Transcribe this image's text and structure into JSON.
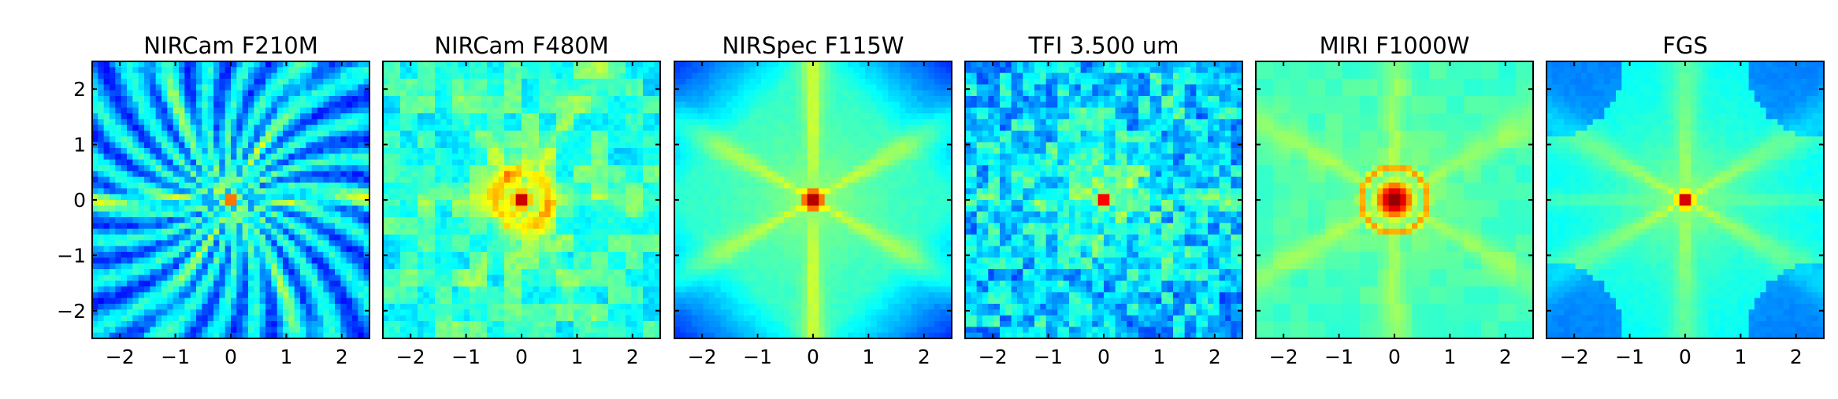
{
  "figure": {
    "panels": [
      "NIRCam F210M",
      "NIRCam F480M",
      "NIRSpec F115W",
      "TFI 3.500 um",
      "MIRI F1000W",
      "FGS"
    ]
  },
  "chart_data": [
    {
      "type": "heatmap",
      "title": "NIRCam F210M",
      "xlabel": "",
      "ylabel": "",
      "xlim": [
        -2.5,
        2.5
      ],
      "ylim": [
        -2.5,
        2.5
      ],
      "xticks": [
        -2,
        -1,
        0,
        1,
        2
      ],
      "xtick_labels": [
        "−2",
        "−1",
        "0",
        "1",
        "2"
      ],
      "yticks": [
        -2,
        -1,
        0,
        1,
        2
      ],
      "ytick_labels": [
        "−2",
        "−1",
        "0",
        "1",
        "2"
      ],
      "colormap": "jet",
      "grid": false,
      "description_values": {
        "peak_x": 0,
        "peak_y": 0,
        "core_radius": 0.12,
        "background_level": 0.25
      }
    },
    {
      "type": "heatmap",
      "title": "NIRCam F480M",
      "xlabel": "",
      "ylabel": "",
      "xlim": [
        -2.5,
        2.5
      ],
      "ylim": [
        -2.5,
        2.5
      ],
      "xticks": [
        -2,
        -1,
        0,
        1,
        2
      ],
      "xtick_labels": [
        "−2",
        "−1",
        "0",
        "1",
        "2"
      ],
      "yticks": [
        -2,
        -1,
        0,
        1,
        2
      ],
      "ytick_labels": [],
      "colormap": "jet",
      "grid": false,
      "description_values": {
        "peak_x": 0,
        "peak_y": 0,
        "core_radius": 0.3,
        "background_level": 0.42
      }
    },
    {
      "type": "heatmap",
      "title": "NIRSpec F115W",
      "xlabel": "",
      "ylabel": "",
      "xlim": [
        -2.5,
        2.5
      ],
      "ylim": [
        -2.5,
        2.5
      ],
      "xticks": [
        -2,
        -1,
        0,
        1,
        2
      ],
      "xtick_labels": [
        "−2",
        "−1",
        "0",
        "1",
        "2"
      ],
      "yticks": [
        -2,
        -1,
        0,
        1,
        2
      ],
      "ytick_labels": [],
      "colormap": "jet",
      "grid": false,
      "description_values": {
        "peak_x": 0,
        "peak_y": 0,
        "core_radius": 0.4,
        "background_level": 0.5
      }
    },
    {
      "type": "heatmap",
      "title": "TFI 3.500 um",
      "xlabel": "",
      "ylabel": "",
      "xlim": [
        -2.5,
        2.5
      ],
      "ylim": [
        -2.5,
        2.5
      ],
      "xticks": [
        -2,
        -1,
        0,
        1,
        2
      ],
      "xtick_labels": [
        "−2",
        "−1",
        "0",
        "1",
        "2"
      ],
      "yticks": [
        -2,
        -1,
        0,
        1,
        2
      ],
      "ytick_labels": [],
      "colormap": "jet",
      "grid": false,
      "description_values": {
        "peak_x": 0,
        "peak_y": 0,
        "core_radius": 0.25,
        "background_level": 0.35
      }
    },
    {
      "type": "heatmap",
      "title": "MIRI F1000W",
      "xlabel": "",
      "ylabel": "",
      "xlim": [
        -2.5,
        2.5
      ],
      "ylim": [
        -2.5,
        2.5
      ],
      "xticks": [
        -2,
        -1,
        0,
        1,
        2
      ],
      "xtick_labels": [
        "−2",
        "−1",
        "0",
        "1",
        "2"
      ],
      "yticks": [
        -2,
        -1,
        0,
        1,
        2
      ],
      "ytick_labels": [],
      "colormap": "jet",
      "grid": false,
      "description_values": {
        "peak_x": 0,
        "peak_y": 0,
        "core_radius": 0.7,
        "background_level": 0.5
      }
    },
    {
      "type": "heatmap",
      "title": "FGS",
      "xlabel": "",
      "ylabel": "",
      "xlim": [
        -2.5,
        2.5
      ],
      "ylim": [
        -2.5,
        2.5
      ],
      "xticks": [
        -2,
        -1,
        0,
        1,
        2
      ],
      "xtick_labels": [
        "−2",
        "−1",
        "0",
        "1",
        "2"
      ],
      "yticks": [
        -2,
        -1,
        0,
        1,
        2
      ],
      "ytick_labels": [],
      "colormap": "jet",
      "grid": false,
      "description_values": {
        "peak_x": 0,
        "peak_y": 0,
        "core_radius": 0.3,
        "background_level": 0.4
      }
    }
  ]
}
